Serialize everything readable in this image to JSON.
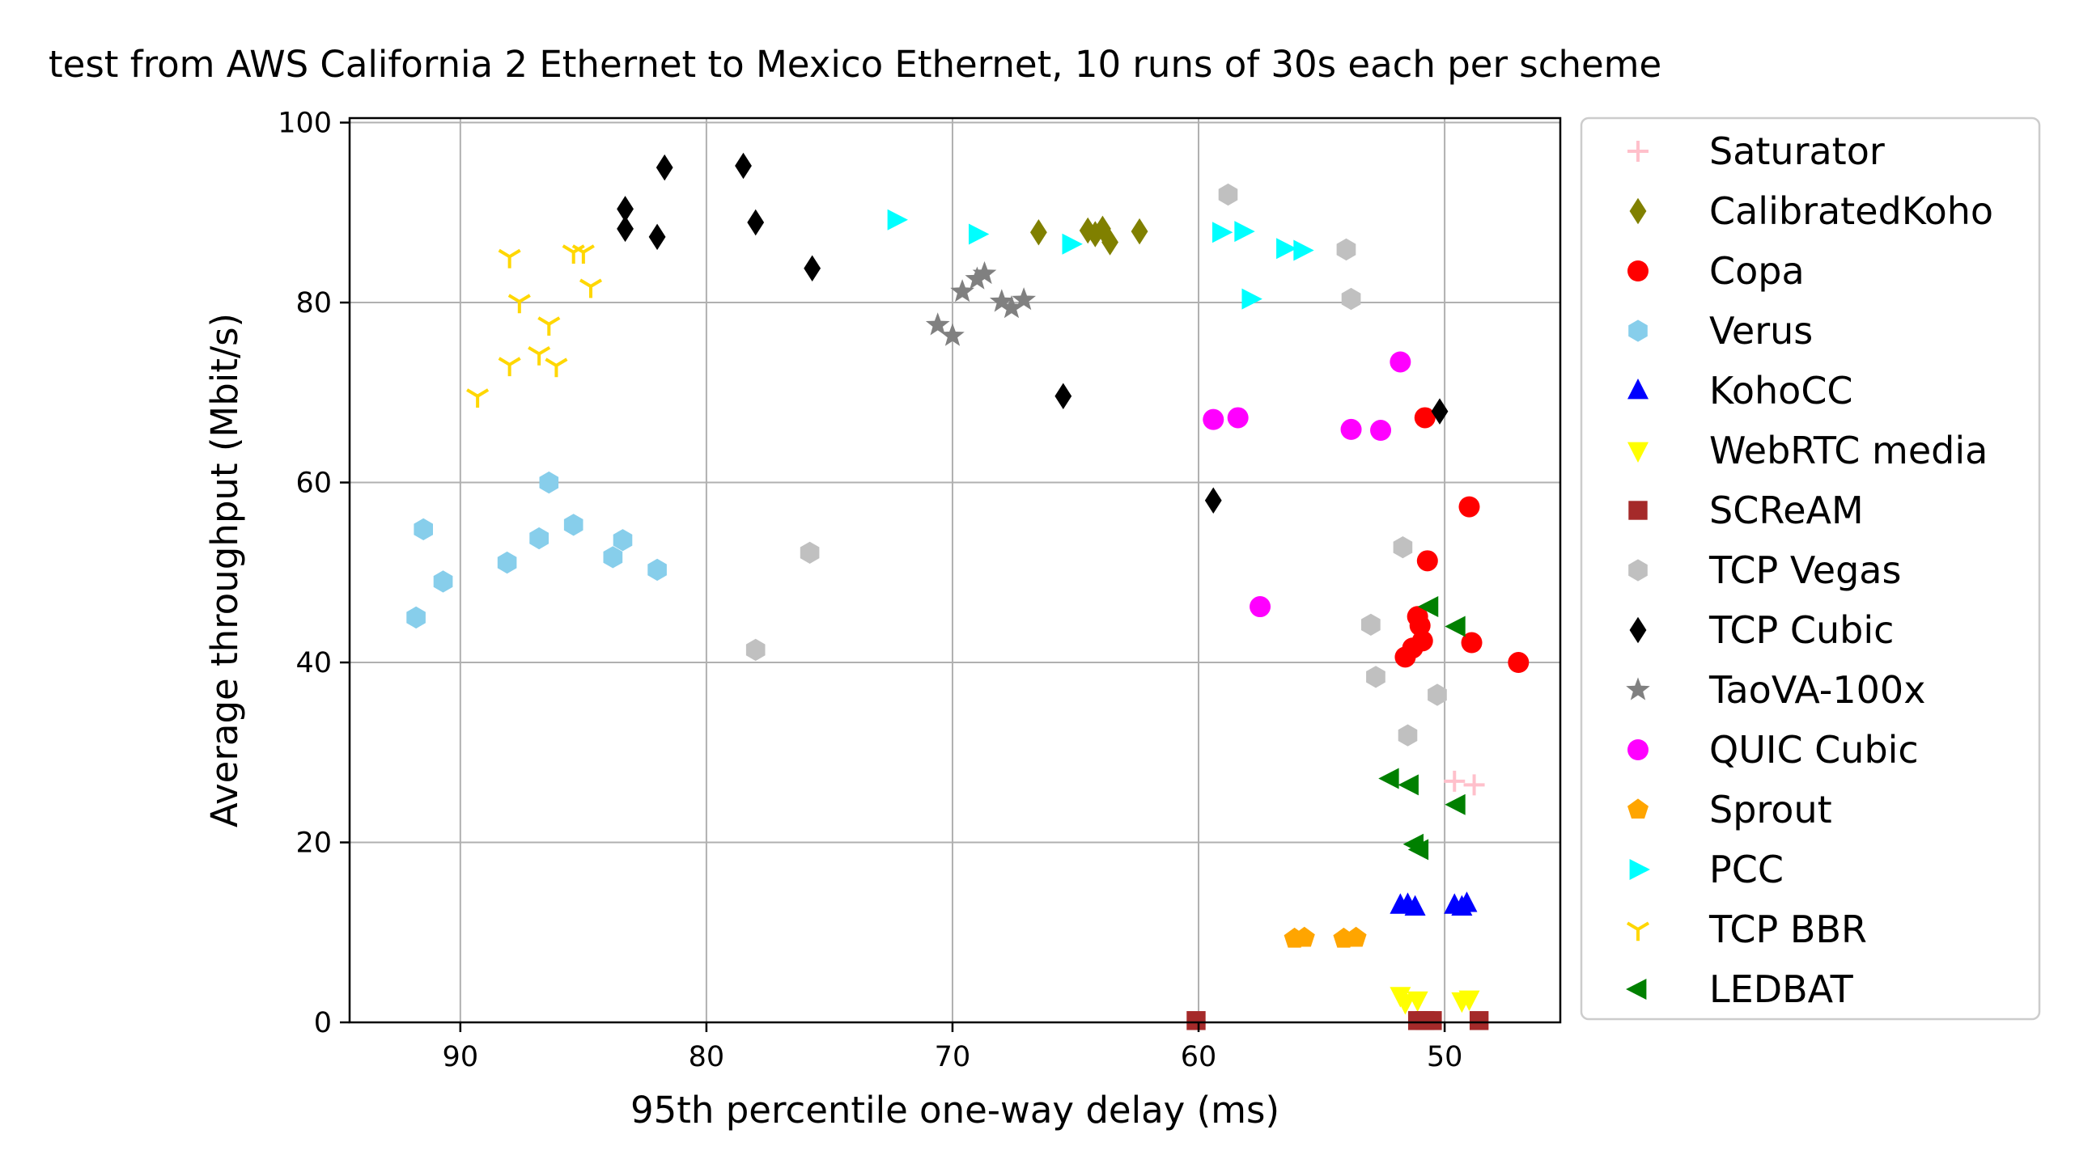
{
  "chart_data": {
    "type": "scatter",
    "title": "test from AWS California 2 Ethernet to Mexico Ethernet, 10 runs of 30s each per scheme",
    "xlabel": "95th percentile one-way delay (ms)",
    "ylabel": "Average throughput (Mbit/s)",
    "xlim": [
      94.5,
      45.3
    ],
    "ylim": [
      0,
      100.5
    ],
    "x_inverted": true,
    "grid": true,
    "legend_position": "outside-right",
    "xticks": [
      90,
      80,
      70,
      60,
      50
    ],
    "yticks": [
      0,
      20,
      40,
      60,
      80,
      100
    ],
    "xtick_labels": [
      "90",
      "80",
      "70",
      "60",
      "50"
    ],
    "ytick_labels": [
      "0",
      "20",
      "40",
      "60",
      "80",
      "100"
    ],
    "series": [
      {
        "name": "Saturator",
        "marker": "plus",
        "color": "#ffc0cb",
        "points": [
          [
            49.6,
            26.8
          ],
          [
            48.8,
            26.4
          ]
        ]
      },
      {
        "name": "CalibratedKoho",
        "marker": "diamond",
        "color": "#808000",
        "points": [
          [
            66.5,
            87.8
          ],
          [
            64.5,
            88.0
          ],
          [
            63.9,
            88.2
          ],
          [
            63.6,
            86.7
          ],
          [
            62.4,
            87.9
          ],
          [
            64.2,
            87.6
          ]
        ]
      },
      {
        "name": "Copa",
        "marker": "circle",
        "color": "#ff0000",
        "points": [
          [
            50.8,
            67.2
          ],
          [
            49.0,
            57.3
          ],
          [
            50.7,
            51.3
          ],
          [
            51.1,
            45.1
          ],
          [
            51.0,
            44.1
          ],
          [
            50.9,
            42.4
          ],
          [
            51.3,
            41.6
          ],
          [
            51.6,
            40.6
          ],
          [
            48.9,
            42.2
          ],
          [
            47.0,
            40.0
          ]
        ]
      },
      {
        "name": "Verus",
        "marker": "hexagon",
        "color": "#87ceeb",
        "points": [
          [
            91.8,
            45.0
          ],
          [
            91.5,
            54.8
          ],
          [
            90.7,
            49.0
          ],
          [
            88.1,
            51.1
          ],
          [
            86.4,
            60.0
          ],
          [
            86.8,
            53.8
          ],
          [
            85.4,
            55.3
          ],
          [
            83.8,
            51.7
          ],
          [
            83.4,
            53.6
          ],
          [
            82.0,
            50.3
          ]
        ]
      },
      {
        "name": "KohoCC",
        "marker": "triangle-up",
        "color": "#0000ff",
        "points": [
          [
            51.8,
            13.0
          ],
          [
            51.2,
            12.8
          ],
          [
            51.5,
            13.1
          ],
          [
            49.6,
            13.0
          ],
          [
            49.1,
            13.2
          ],
          [
            49.3,
            12.8
          ]
        ]
      },
      {
        "name": "WebRTC media",
        "marker": "triangle-down",
        "color": "#ffff00",
        "points": [
          [
            51.8,
            3.0
          ],
          [
            51.1,
            2.5
          ],
          [
            51.6,
            2.2
          ],
          [
            49.3,
            2.4
          ],
          [
            49.0,
            2.6
          ]
        ]
      },
      {
        "name": "SCReAM",
        "marker": "square",
        "color": "#a52a2a",
        "points": [
          [
            60.1,
            0.2
          ],
          [
            51.1,
            0.2
          ],
          [
            50.8,
            0.2
          ],
          [
            50.5,
            0.2
          ],
          [
            48.6,
            0.2
          ]
        ]
      },
      {
        "name": "TCP Vegas",
        "marker": "hexagon",
        "color": "#c0c0c0",
        "points": [
          [
            58.8,
            92.0
          ],
          [
            54.0,
            85.9
          ],
          [
            53.8,
            80.4
          ],
          [
            75.8,
            52.2
          ],
          [
            78.0,
            41.4
          ],
          [
            51.7,
            52.8
          ],
          [
            53.0,
            44.2
          ],
          [
            52.8,
            38.4
          ],
          [
            50.3,
            36.4
          ],
          [
            51.5,
            31.9
          ]
        ]
      },
      {
        "name": "TCP Cubic",
        "marker": "diamond",
        "color": "#000000",
        "points": [
          [
            83.3,
            90.4
          ],
          [
            83.3,
            88.2
          ],
          [
            81.7,
            95.0
          ],
          [
            82.0,
            87.3
          ],
          [
            78.5,
            95.2
          ],
          [
            78.0,
            88.9
          ],
          [
            75.7,
            83.8
          ],
          [
            65.5,
            69.6
          ],
          [
            59.4,
            58.0
          ],
          [
            50.2,
            67.9
          ]
        ]
      },
      {
        "name": "TaoVA-100x",
        "marker": "star",
        "color": "#808080",
        "points": [
          [
            70.6,
            77.5
          ],
          [
            70.0,
            76.3
          ],
          [
            69.6,
            81.2
          ],
          [
            69.0,
            82.6
          ],
          [
            68.7,
            83.2
          ],
          [
            68.0,
            80.1
          ],
          [
            67.6,
            79.4
          ],
          [
            67.1,
            80.3
          ]
        ]
      },
      {
        "name": "QUIC Cubic",
        "marker": "circle",
        "color": "#ff00ff",
        "points": [
          [
            59.4,
            67.0
          ],
          [
            58.4,
            67.2
          ],
          [
            53.8,
            65.9
          ],
          [
            52.6,
            65.8
          ],
          [
            51.8,
            73.4
          ],
          [
            57.5,
            46.2
          ]
        ]
      },
      {
        "name": "Sprout",
        "marker": "pentagon",
        "color": "#ffa500",
        "points": [
          [
            56.1,
            9.3
          ],
          [
            55.7,
            9.4
          ],
          [
            54.1,
            9.3
          ],
          [
            53.6,
            9.4
          ]
        ]
      },
      {
        "name": "PCC",
        "marker": "triangle-right",
        "color": "#00ffff",
        "points": [
          [
            72.3,
            89.2
          ],
          [
            69.0,
            87.6
          ],
          [
            65.2,
            86.5
          ],
          [
            59.1,
            87.8
          ],
          [
            58.2,
            87.9
          ],
          [
            56.5,
            86.0
          ],
          [
            55.8,
            85.8
          ],
          [
            57.9,
            80.4
          ]
        ]
      },
      {
        "name": "TCP BBR",
        "marker": "tri-down",
        "color": "#ffd700",
        "points": [
          [
            89.3,
            69.6
          ],
          [
            88.0,
            85.1
          ],
          [
            87.6,
            80.1
          ],
          [
            88.0,
            73.1
          ],
          [
            86.8,
            74.3
          ],
          [
            86.4,
            77.6
          ],
          [
            86.1,
            73.0
          ],
          [
            85.4,
            85.6
          ],
          [
            85.0,
            85.6
          ],
          [
            84.7,
            81.8
          ]
        ]
      },
      {
        "name": "LEDBAT",
        "marker": "triangle-left",
        "color": "#008000",
        "points": [
          [
            52.2,
            27.1
          ],
          [
            51.4,
            26.4
          ],
          [
            50.6,
            46.2
          ],
          [
            49.5,
            44.0
          ],
          [
            49.5,
            24.2
          ],
          [
            51.2,
            19.8
          ],
          [
            51.0,
            19.2
          ]
        ]
      }
    ]
  }
}
